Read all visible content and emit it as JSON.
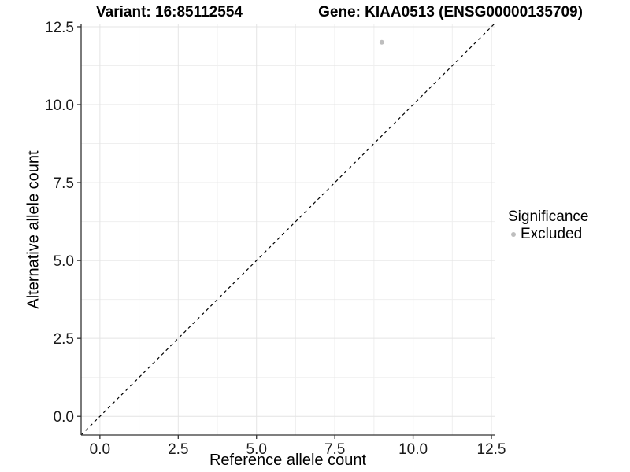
{
  "chart_data": {
    "type": "scatter",
    "title_left": "Variant: 16:85112554",
    "title_right": "Gene: KIAA0513 (ENSG00000135709)",
    "xlabel": "Reference allele count",
    "ylabel": "Alternative allele count",
    "axis_range": [
      -0.6,
      12.6
    ],
    "x_ticks": {
      "values": [
        0,
        2.5,
        5,
        7.5,
        10,
        12.5
      ],
      "labels": [
        "0.0",
        "2.5",
        "5.0",
        "7.5",
        "10.0",
        "12.5"
      ]
    },
    "y_ticks": {
      "values": [
        0,
        2.5,
        5,
        7.5,
        10,
        12.5
      ],
      "labels": [
        "0.0",
        "2.5",
        "5.0",
        "7.5",
        "10.0",
        "12.5"
      ]
    },
    "minor_ticks": [
      1.25,
      3.75,
      6.25,
      8.75,
      11.25
    ],
    "grid": "major+minor",
    "reference_line": {
      "type": "identity",
      "slope": 1,
      "intercept": 0,
      "style": "dashed",
      "color": "#000000"
    },
    "series": [
      {
        "name": "Excluded",
        "color": "#bebebe",
        "points": [
          {
            "x": 9,
            "y": 12
          }
        ]
      }
    ],
    "legend": {
      "title": "Significance",
      "position": "right",
      "items": [
        {
          "label": "Excluded",
          "color": "#bebebe"
        }
      ]
    },
    "colors": {
      "point": "#bebebe",
      "grid_major": "#e4e4e4",
      "grid_minor": "#efefef",
      "axis_line": "#333333",
      "tick_mark": "#333333",
      "tick_text": "#1a1a1a",
      "reference_line": "#000000"
    }
  }
}
